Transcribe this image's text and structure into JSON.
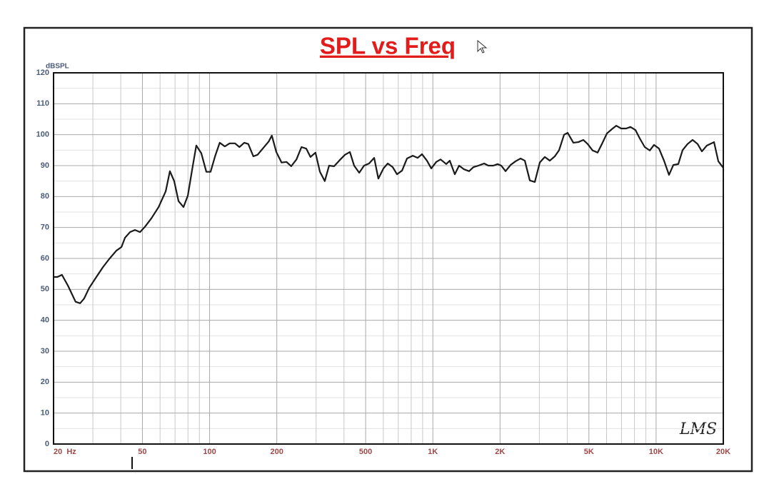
{
  "chart_data": {
    "type": "line",
    "title": "SPL vs Freq",
    "ylabel": "dBSPL",
    "logo": "LMS",
    "xscale": "log",
    "grid": true,
    "color": "#1a1a1a",
    "xlim": [
      20,
      20000
    ],
    "ylim": [
      0,
      120
    ],
    "xticks": [
      {
        "value": 20,
        "label": "20  Hz"
      },
      50,
      100,
      200,
      500,
      {
        "value": 1000,
        "label": "1K"
      },
      {
        "value": 2000,
        "label": "2K"
      },
      {
        "value": 5000,
        "label": "5K"
      },
      {
        "value": 10000,
        "label": "10K"
      },
      {
        "value": 20000,
        "label": "20K"
      }
    ],
    "yticks": [
      0,
      10,
      20,
      30,
      40,
      50,
      60,
      70,
      80,
      90,
      100,
      110,
      120
    ],
    "x_minor_ticks": [
      30,
      40,
      60,
      70,
      80,
      90,
      300,
      400,
      600,
      700,
      800,
      900,
      3000,
      4000,
      6000,
      7000,
      8000,
      9000
    ],
    "y_minor_ticks": [
      5,
      15,
      25,
      35,
      45,
      55,
      65,
      75,
      85,
      95,
      105,
      115
    ],
    "x": [
      20,
      20.8,
      21.8,
      23.2,
      25.1,
      26.3,
      27.4,
      28.9,
      31.1,
      33.3,
      35.5,
      38.2,
      40.3,
      41.8,
      44.0,
      46.3,
      48.8,
      51.3,
      54.9,
      59.1,
      63.6,
      66.4,
      69.4,
      72.6,
      76.4,
      79.9,
      84.1,
      87.2,
      91.8,
      96.7,
      101,
      106,
      111,
      117,
      123,
      130,
      136,
      143,
      149,
      157,
      164,
      173,
      184,
      190,
      199,
      210,
      221,
      232,
      245,
      258,
      271,
      283,
      298,
      312,
      328,
      343,
      361,
      383,
      404,
      425,
      444,
      468,
      492,
      518,
      546,
      570,
      601,
      628,
      661,
      691,
      728,
      766,
      813,
      855,
      894,
      941,
      984,
      1036,
      1083,
      1148,
      1191,
      1254,
      1311,
      1380,
      1453,
      1519,
      1600,
      1697,
      1773,
      1867,
      1951,
      2025,
      2117,
      2228,
      2346,
      2470,
      2582,
      2719,
      2862,
      3013,
      3173,
      3341,
      3518,
      3677,
      3871,
      4016,
      4260,
      4484,
      4722,
      4936,
      5197,
      5471,
      5719,
      6021,
      6340,
      6627,
      6977,
      7345,
      7677,
      8083,
      8449,
      8896,
      9367,
      9790,
      10308,
      10852,
      11425,
      11942,
      12573,
      13142,
      13838,
      14571,
      15341,
      16035,
      16882,
      18176,
      19000,
      20000
    ],
    "values": [
      54.0,
      54.0,
      54.7,
      51.2,
      46.0,
      45.5,
      47.0,
      50.5,
      54.0,
      57.2,
      59.8,
      62.5,
      63.7,
      66.7,
      68.5,
      69.2,
      68.5,
      70.2,
      73.0,
      76.6,
      81.7,
      88.2,
      85.0,
      78.5,
      76.6,
      80.3,
      90.0,
      96.5,
      94.0,
      88.0,
      88.0,
      93.2,
      97.4,
      96.2,
      97.2,
      97.2,
      96.0,
      97.4,
      97.0,
      93.0,
      93.5,
      95.5,
      97.8,
      99.7,
      94.4,
      91.0,
      91.2,
      89.8,
      92.0,
      96.0,
      95.5,
      92.8,
      94.2,
      88.0,
      85.0,
      90.0,
      89.8,
      91.8,
      93.5,
      94.4,
      90.0,
      87.7,
      90.0,
      90.7,
      92.5,
      85.8,
      89.1,
      90.7,
      89.5,
      87.2,
      88.4,
      92.3,
      93.2,
      92.5,
      93.7,
      91.6,
      89.1,
      91.2,
      92.0,
      90.5,
      91.6,
      87.2,
      90.0,
      88.8,
      88.2,
      89.5,
      90.0,
      90.7,
      90.0,
      90.0,
      90.5,
      90.0,
      88.2,
      90.2,
      91.4,
      92.3,
      91.6,
      85.2,
      84.7,
      91.0,
      92.8,
      91.6,
      93.0,
      95.0,
      100.0,
      100.6,
      97.4,
      97.6,
      98.3,
      97.0,
      94.9,
      94.2,
      97.0,
      100.4,
      101.8,
      102.9,
      102.0,
      102.0,
      102.5,
      101.5,
      98.8,
      96.0,
      94.9,
      96.7,
      95.5,
      91.6,
      87.0,
      90.2,
      90.5,
      95.0,
      97.0,
      98.3,
      97.0,
      94.6,
      96.5,
      97.6,
      91.4,
      89.3
    ]
  }
}
